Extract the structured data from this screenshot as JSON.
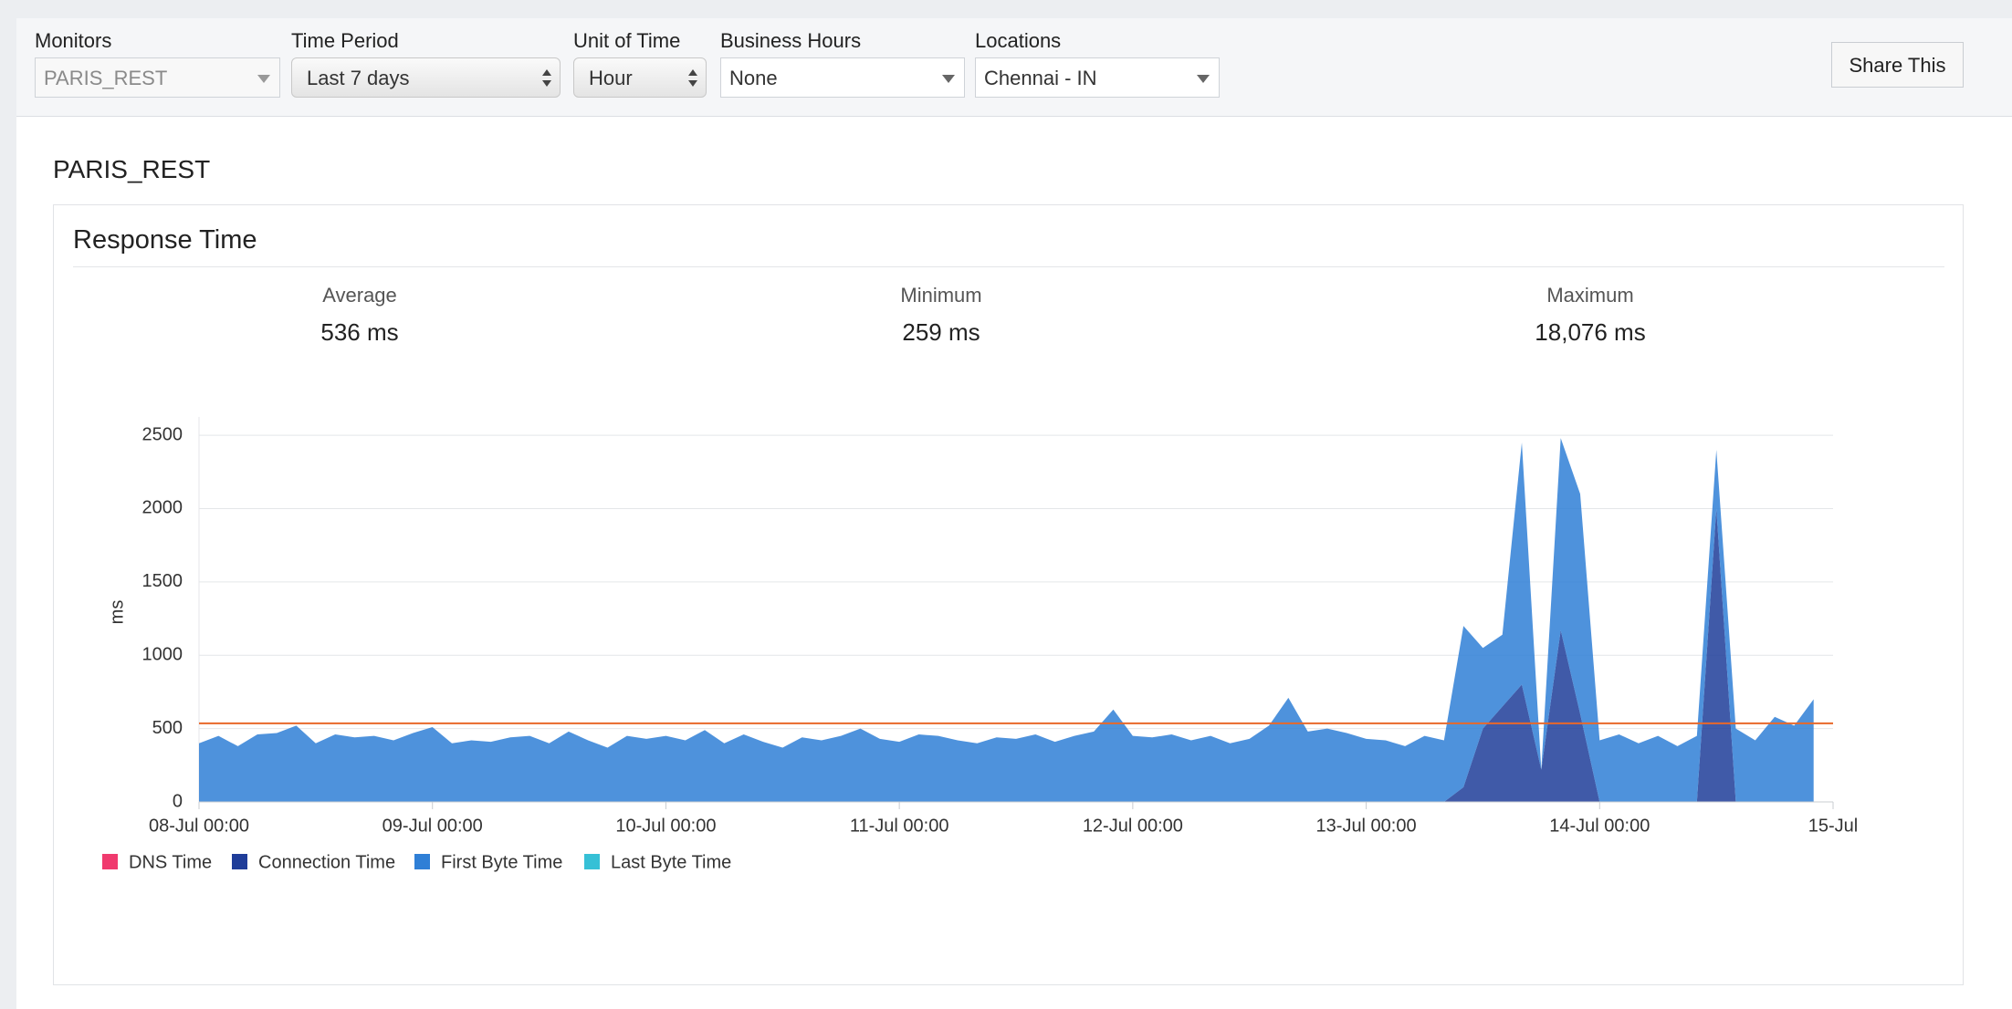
{
  "filters": [
    {
      "label": "Monitors",
      "value": "PARIS_REST"
    },
    {
      "label": "Time Period",
      "value": "Last 7 days"
    },
    {
      "label": "Unit of Time",
      "value": "Hour"
    },
    {
      "label": "Business Hours",
      "value": "None"
    },
    {
      "label": "Locations",
      "value": "Chennai - IN"
    }
  ],
  "share_button": "Share This",
  "monitor_title": "PARIS_REST",
  "panel_title": "Response Time",
  "stats": [
    {
      "label": "Average",
      "value": "536 ms"
    },
    {
      "label": "Minimum",
      "value": "259 ms"
    },
    {
      "label": "Maximum",
      "value": "18,076 ms"
    }
  ],
  "chart_data": {
    "type": "stacked-area",
    "y_label": "ms",
    "x": [
      0,
      2,
      4,
      6,
      8,
      10,
      12,
      14,
      16,
      18,
      20,
      22,
      24,
      26,
      28,
      30,
      32,
      34,
      36,
      38,
      40,
      42,
      44,
      46,
      48,
      50,
      52,
      54,
      56,
      58,
      60,
      62,
      64,
      66,
      68,
      70,
      72,
      74,
      76,
      78,
      80,
      82,
      84,
      86,
      88,
      90,
      92,
      94,
      96,
      98,
      100,
      102,
      104,
      106,
      108,
      110,
      112,
      114,
      116,
      118,
      120,
      122,
      124,
      126,
      128,
      130,
      132,
      134,
      136,
      138,
      140,
      142,
      144,
      146,
      148,
      150,
      152,
      154,
      156,
      158,
      160,
      162,
      164,
      166
    ],
    "xlim": [
      0,
      168
    ],
    "xticks": [
      {
        "value": 0,
        "label": "08-Jul 00:00"
      },
      {
        "value": 24,
        "label": "09-Jul 00:00"
      },
      {
        "value": 48,
        "label": "10-Jul 00:00"
      },
      {
        "value": 72,
        "label": "11-Jul 00:00"
      },
      {
        "value": 96,
        "label": "12-Jul 00:00"
      },
      {
        "value": 120,
        "label": "13-Jul 00:00"
      },
      {
        "value": 144,
        "label": "14-Jul 00:00"
      },
      {
        "value": 168,
        "label": "15-Jul"
      }
    ],
    "ylim": [
      0,
      2600
    ],
    "yticks": [
      0,
      500,
      1000,
      1500,
      2000,
      2500
    ],
    "grid": true,
    "average_line": 536,
    "average_line_color": "#e8682a",
    "series": [
      {
        "name": "DNS Time",
        "color": "#f03a6e",
        "values": [
          0,
          0,
          0,
          0,
          0,
          0,
          0,
          0,
          0,
          0,
          0,
          0,
          0,
          0,
          0,
          0,
          0,
          0,
          0,
          0,
          0,
          0,
          0,
          0,
          0,
          0,
          0,
          0,
          0,
          0,
          0,
          0,
          0,
          0,
          0,
          0,
          0,
          0,
          0,
          0,
          0,
          0,
          0,
          0,
          0,
          0,
          0,
          0,
          0,
          0,
          0,
          0,
          0,
          0,
          0,
          0,
          0,
          0,
          0,
          0,
          0,
          0,
          0,
          0,
          0,
          0,
          0,
          0,
          0,
          0,
          0,
          0,
          0,
          0,
          0,
          0,
          0,
          0,
          0,
          0,
          0,
          0,
          0,
          0
        ]
      },
      {
        "name": "Connection Time",
        "color": "#1f3d99",
        "values": [
          0,
          0,
          0,
          0,
          0,
          0,
          0,
          0,
          0,
          0,
          0,
          0,
          0,
          0,
          0,
          0,
          0,
          0,
          0,
          0,
          0,
          0,
          0,
          0,
          0,
          0,
          0,
          0,
          0,
          0,
          0,
          0,
          0,
          0,
          0,
          0,
          0,
          0,
          0,
          0,
          0,
          0,
          0,
          0,
          0,
          0,
          0,
          0,
          0,
          0,
          0,
          0,
          0,
          0,
          0,
          0,
          0,
          0,
          0,
          0,
          0,
          0,
          0,
          0,
          0,
          100,
          500,
          650,
          800,
          220,
          1170,
          600,
          0,
          0,
          0,
          0,
          0,
          0,
          2000,
          0,
          0,
          0,
          0,
          0
        ]
      },
      {
        "name": "First Byte Time",
        "color": "#2f7fd6",
        "values": [
          400,
          450,
          380,
          460,
          470,
          520,
          400,
          460,
          440,
          450,
          420,
          470,
          510,
          400,
          420,
          410,
          440,
          450,
          400,
          480,
          420,
          370,
          450,
          430,
          450,
          420,
          490,
          400,
          460,
          410,
          370,
          440,
          420,
          450,
          500,
          430,
          410,
          460,
          450,
          420,
          400,
          440,
          430,
          460,
          410,
          450,
          480,
          630,
          450,
          440,
          460,
          420,
          450,
          400,
          430,
          520,
          710,
          480,
          500,
          470,
          430,
          420,
          380,
          450,
          420,
          1100,
          550,
          490,
          1650,
          0,
          1310,
          1500,
          420,
          460,
          400,
          450,
          380,
          450,
          400,
          500,
          420,
          580,
          520,
          700
        ]
      },
      {
        "name": "Last Byte Time",
        "color": "#36c0d6",
        "values": [
          0,
          0,
          0,
          0,
          0,
          0,
          0,
          0,
          0,
          0,
          0,
          0,
          0,
          0,
          0,
          0,
          0,
          0,
          0,
          0,
          0,
          0,
          0,
          0,
          0,
          0,
          0,
          0,
          0,
          0,
          0,
          0,
          0,
          0,
          0,
          0,
          0,
          0,
          0,
          0,
          0,
          0,
          0,
          0,
          0,
          0,
          0,
          0,
          0,
          0,
          0,
          0,
          0,
          0,
          0,
          0,
          0,
          0,
          0,
          0,
          0,
          0,
          0,
          0,
          0,
          0,
          0,
          0,
          0,
          0,
          0,
          0,
          0,
          0,
          0,
          0,
          0,
          0,
          0,
          0,
          0,
          0,
          0,
          0
        ]
      }
    ]
  }
}
